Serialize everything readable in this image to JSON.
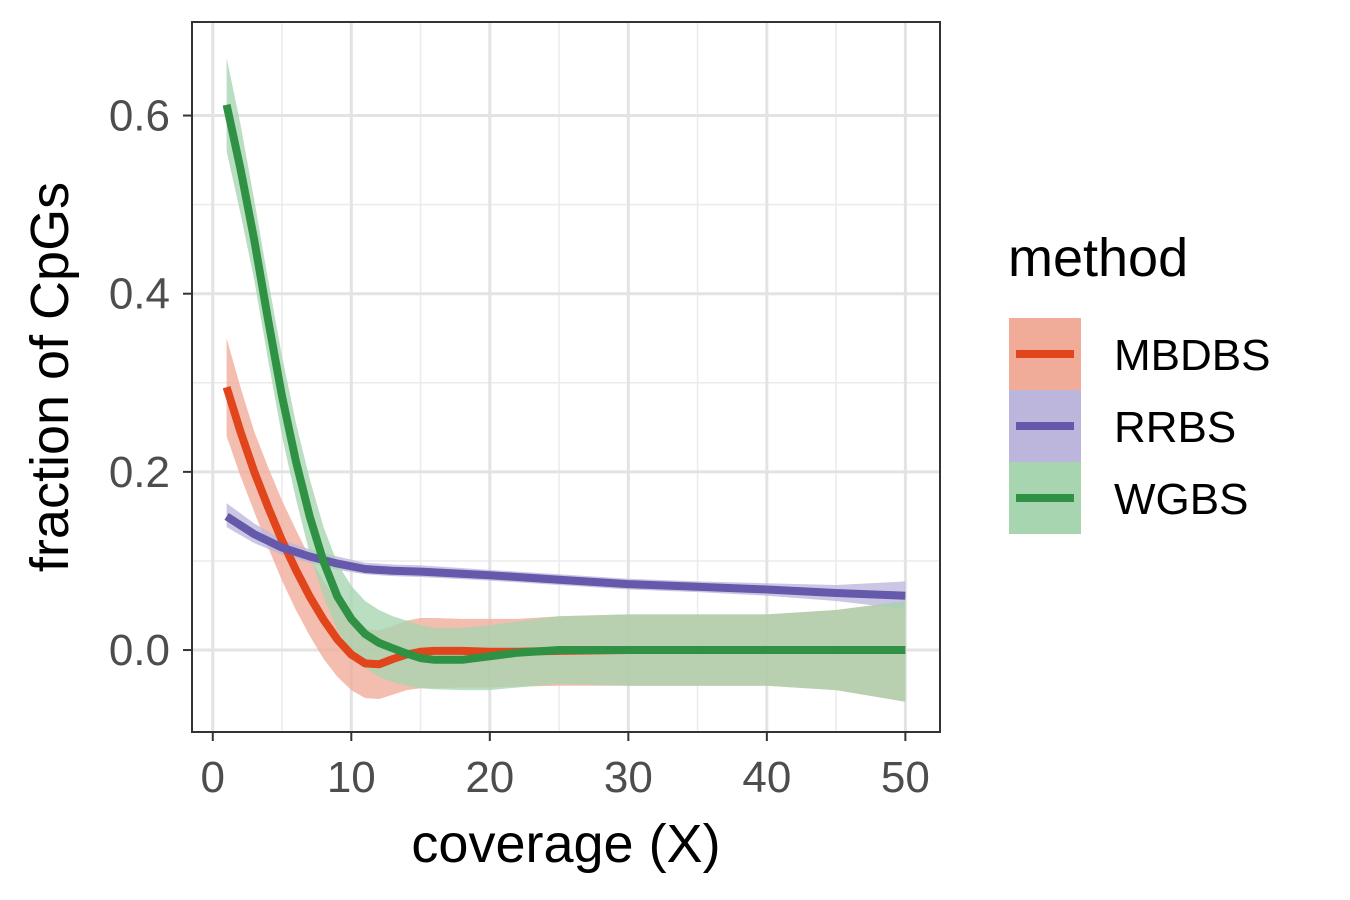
{
  "chart_data": {
    "type": "line",
    "title": "",
    "xlabel": "coverage (X)",
    "ylabel": "fraction of CpGs",
    "xlim": [
      -1.5,
      52.5
    ],
    "ylim": [
      -0.092,
      0.705
    ],
    "xticks": [
      0,
      10,
      20,
      30,
      40,
      50
    ],
    "xtick_labels": [
      "0",
      "10",
      "20",
      "30",
      "40",
      "50"
    ],
    "yticks": [
      0.0,
      0.2,
      0.4,
      0.6
    ],
    "ytick_labels": [
      "0.0",
      "0.2",
      "0.4",
      "0.6"
    ],
    "grid": true,
    "legend": {
      "title": "method",
      "placement": "right"
    },
    "series": [
      {
        "name": "MBDBS",
        "color": "#e0451b",
        "fill": "#f0ac98",
        "x": [
          1,
          2,
          3,
          4,
          5,
          6,
          7,
          8,
          9,
          10,
          11,
          12,
          13,
          14,
          15,
          16,
          18,
          20,
          22,
          25,
          30,
          35,
          40,
          45,
          50
        ],
        "y": [
          0.295,
          0.245,
          0.2,
          0.16,
          0.123,
          0.09,
          0.06,
          0.034,
          0.012,
          -0.005,
          -0.015,
          -0.016,
          -0.01,
          -0.005,
          -0.002,
          -0.001,
          -0.001,
          -0.002,
          -0.002,
          -0.001,
          0.0,
          0.0,
          0.0,
          0.0,
          0.0
        ],
        "lower": [
          0.24,
          0.195,
          0.155,
          0.115,
          0.078,
          0.045,
          0.016,
          -0.01,
          -0.03,
          -0.045,
          -0.054,
          -0.055,
          -0.05,
          -0.045,
          -0.043,
          -0.043,
          -0.042,
          -0.042,
          -0.041,
          -0.04,
          -0.04,
          -0.04,
          -0.04,
          -0.045,
          -0.058
        ],
        "upper": [
          0.35,
          0.295,
          0.245,
          0.205,
          0.168,
          0.135,
          0.104,
          0.078,
          0.054,
          0.035,
          0.024,
          0.022,
          0.027,
          0.033,
          0.036,
          0.036,
          0.035,
          0.035,
          0.035,
          0.038,
          0.04,
          0.04,
          0.04,
          0.045,
          0.055
        ]
      },
      {
        "name": "RRBS",
        "color": "#6459aa",
        "fill": "#bcb6dc",
        "x": [
          1,
          3,
          5,
          7,
          9,
          11,
          13,
          15,
          20,
          25,
          30,
          35,
          40,
          45,
          50
        ],
        "y": [
          0.15,
          0.13,
          0.115,
          0.105,
          0.097,
          0.091,
          0.089,
          0.088,
          0.084,
          0.079,
          0.074,
          0.071,
          0.068,
          0.064,
          0.061
        ],
        "lower": [
          0.138,
          0.12,
          0.107,
          0.098,
          0.09,
          0.085,
          0.083,
          0.082,
          0.078,
          0.073,
          0.068,
          0.065,
          0.061,
          0.055,
          0.046
        ],
        "upper": [
          0.165,
          0.142,
          0.124,
          0.113,
          0.105,
          0.098,
          0.096,
          0.095,
          0.09,
          0.085,
          0.08,
          0.077,
          0.075,
          0.073,
          0.077
        ]
      },
      {
        "name": "WGBS",
        "color": "#2e9144",
        "fill": "#a6d5b0",
        "x": [
          1,
          2,
          3,
          4,
          5,
          6,
          7,
          8,
          9,
          10,
          11,
          12,
          13,
          14,
          15,
          16,
          18,
          20,
          22,
          25,
          30,
          35,
          40,
          45,
          50
        ],
        "y": [
          0.612,
          0.54,
          0.46,
          0.37,
          0.285,
          0.212,
          0.15,
          0.099,
          0.06,
          0.035,
          0.018,
          0.008,
          0.002,
          -0.004,
          -0.009,
          -0.011,
          -0.011,
          -0.007,
          -0.003,
          0.0,
          0.0,
          0.0,
          0.0,
          0.0,
          0.0
        ],
        "lower": [
          0.56,
          0.49,
          0.415,
          0.325,
          0.24,
          0.17,
          0.108,
          0.06,
          0.022,
          -0.003,
          -0.02,
          -0.03,
          -0.036,
          -0.04,
          -0.043,
          -0.044,
          -0.045,
          -0.045,
          -0.042,
          -0.038,
          -0.04,
          -0.04,
          -0.04,
          -0.045,
          -0.058
        ],
        "upper": [
          0.665,
          0.59,
          0.505,
          0.415,
          0.33,
          0.255,
          0.192,
          0.138,
          0.097,
          0.072,
          0.055,
          0.045,
          0.038,
          0.033,
          0.028,
          0.025,
          0.025,
          0.028,
          0.032,
          0.038,
          0.04,
          0.04,
          0.04,
          0.045,
          0.055
        ]
      }
    ]
  }
}
